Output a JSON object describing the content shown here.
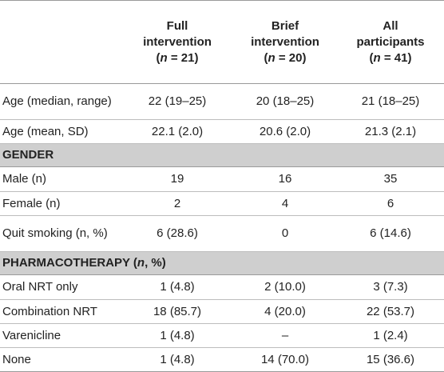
{
  "table": {
    "columns": [
      {
        "line1": "Full",
        "line2": "intervention",
        "n_prefix": "(",
        "n_var": "n",
        "n_suffix": " = 21)"
      },
      {
        "line1": "Brief",
        "line2": "intervention",
        "n_prefix": "(",
        "n_var": "n",
        "n_suffix": " = 20)"
      },
      {
        "line1": "All",
        "line2": "participants",
        "n_prefix": "(",
        "n_var": "n",
        "n_suffix": " = 41)"
      }
    ],
    "age_rows": [
      {
        "label": "Age (median, range)",
        "values": [
          "22 (19–25)",
          "20 (18–25)",
          "21 (18–25)"
        ]
      },
      {
        "label": "Age (mean, SD)",
        "values": [
          "22.1 (2.0)",
          "20.6 (2.0)",
          "21.3 (2.1)"
        ]
      }
    ],
    "gender": {
      "title": "GENDER",
      "rows": [
        {
          "label": "Male (n)",
          "values": [
            "19",
            "16",
            "35"
          ]
        },
        {
          "label": "Female (n)",
          "values": [
            "2",
            "4",
            "6"
          ]
        },
        {
          "label": "Quit smoking (n, %)",
          "values": [
            "6 (28.6)",
            "0",
            "6 (14.6)"
          ]
        }
      ]
    },
    "pharmacotherapy": {
      "title_prefix": "PHARMACOTHERAPY (",
      "title_var": "n",
      "title_suffix": ", %)",
      "rows": [
        {
          "label": "Oral NRT only",
          "values": [
            "1 (4.8)",
            "2 (10.0)",
            "3 (7.3)"
          ]
        },
        {
          "label": "Combination NRT",
          "values": [
            "18 (85.7)",
            "4 (20.0)",
            "22 (53.7)"
          ]
        },
        {
          "label": "Varenicline",
          "values": [
            "1 (4.8)",
            "–",
            "1 (2.4)"
          ]
        },
        {
          "label": "None",
          "values": [
            "1 (4.8)",
            "14 (70.0)",
            "15 (36.6)"
          ]
        }
      ]
    }
  }
}
